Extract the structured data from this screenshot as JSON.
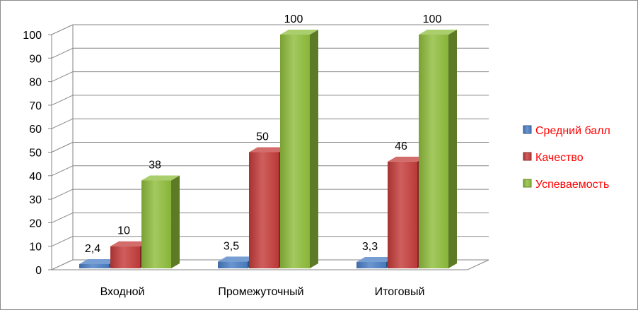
{
  "chart_data": {
    "type": "bar",
    "variant": "3d-clustered-column",
    "title": "",
    "xlabel": "",
    "ylabel": "",
    "ylim": [
      0,
      100
    ],
    "yticks": [
      0,
      10,
      20,
      30,
      40,
      50,
      60,
      70,
      80,
      90,
      100
    ],
    "grid": true,
    "legend_position": "right",
    "categories": [
      "Входной",
      "Промежуточный",
      "Итоговый"
    ],
    "series": [
      {
        "name": "Средний балл",
        "color": "#4a7ec4",
        "values": [
          2.4,
          3.5,
          3.3
        ],
        "labels": [
          "2,4",
          "3,5",
          "3,3"
        ]
      },
      {
        "name": "Качество",
        "color": "#c43c3a",
        "values": [
          10,
          50,
          46
        ],
        "labels": [
          "10",
          "50",
          "46"
        ]
      },
      {
        "name": "Успеваемость",
        "color": "#8fbd3c",
        "values": [
          38,
          100,
          100
        ],
        "labels": [
          "38",
          "100",
          "100"
        ]
      }
    ]
  }
}
